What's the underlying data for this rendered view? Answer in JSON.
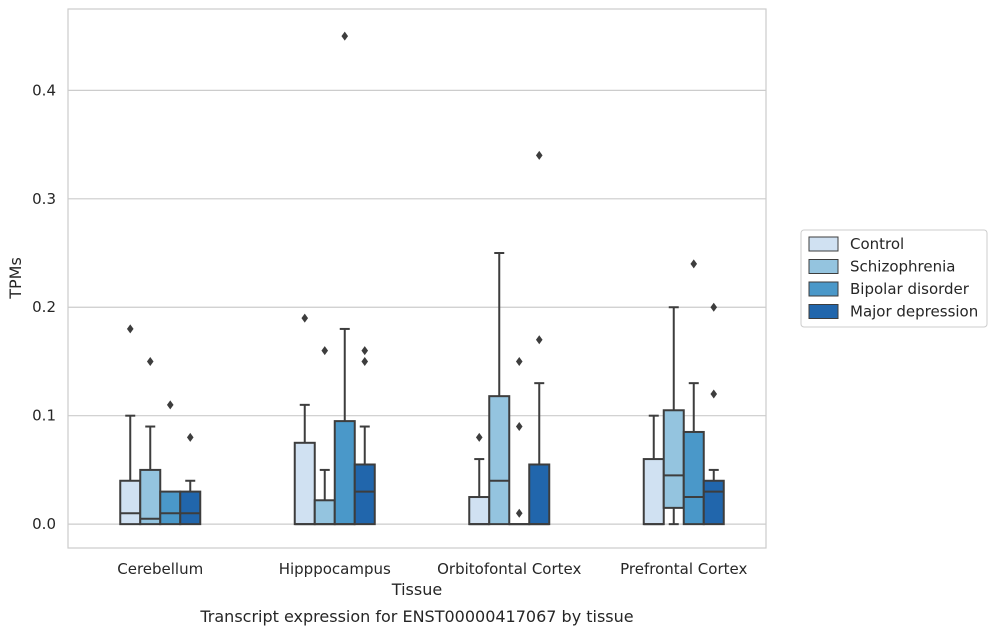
{
  "chart_data": {
    "type": "box",
    "title": "",
    "caption": "Transcript expression for ENST00000417067 by tissue",
    "xlabel": "Tissue",
    "ylabel": "TPMs",
    "ylim": [
      -0.022,
      0.475
    ],
    "yticks": [
      0.0,
      0.1,
      0.2,
      0.3,
      0.4
    ],
    "ytick_labels": [
      "0.0",
      "0.1",
      "0.2",
      "0.3",
      "0.4"
    ],
    "grid": "horizontal",
    "legend_position": "right",
    "categories": [
      "Cerebellum",
      "Hipppocampus",
      "Orbitofontal Cortex",
      "Prefrontal Cortex"
    ],
    "series": [
      {
        "name": "Control",
        "color": "#d0e1f2",
        "boxes": [
          {
            "min": 0.0,
            "q1": 0.0,
            "median": 0.01,
            "q3": 0.04,
            "max": 0.1,
            "outliers": [
              0.18
            ]
          },
          {
            "min": 0.0,
            "q1": 0.0,
            "median": 0.0,
            "q3": 0.075,
            "max": 0.11,
            "outliers": [
              0.19
            ]
          },
          {
            "min": 0.0,
            "q1": 0.0,
            "median": 0.0,
            "q3": 0.025,
            "max": 0.06,
            "outliers": [
              0.08
            ]
          },
          {
            "min": 0.0,
            "q1": 0.0,
            "median": 0.0,
            "q3": 0.06,
            "max": 0.1,
            "outliers": []
          }
        ]
      },
      {
        "name": "Schizophrenia",
        "color": "#94c4df",
        "boxes": [
          {
            "min": 0.0,
            "q1": 0.0,
            "median": 0.005,
            "q3": 0.05,
            "max": 0.09,
            "outliers": [
              0.15
            ]
          },
          {
            "min": 0.0,
            "q1": 0.0,
            "median": 0.0,
            "q3": 0.022,
            "max": 0.05,
            "outliers": [
              0.16
            ]
          },
          {
            "min": 0.0,
            "q1": 0.0,
            "median": 0.04,
            "q3": 0.118,
            "max": 0.25,
            "outliers": []
          },
          {
            "min": 0.0,
            "q1": 0.015,
            "median": 0.045,
            "q3": 0.105,
            "max": 0.2,
            "outliers": []
          }
        ]
      },
      {
        "name": "Bipolar disorder",
        "color": "#4a98c9",
        "boxes": [
          {
            "min": 0.0,
            "q1": 0.0,
            "median": 0.01,
            "q3": 0.03,
            "max": 0.03,
            "outliers": [
              0.11
            ]
          },
          {
            "min": 0.0,
            "q1": 0.0,
            "median": 0.0,
            "q3": 0.095,
            "max": 0.18,
            "outliers": [
              0.45
            ]
          },
          {
            "min": 0.0,
            "q1": 0.0,
            "median": 0.0,
            "q3": 0.0,
            "max": 0.0,
            "outliers": [
              0.01,
              0.09,
              0.15
            ]
          },
          {
            "min": 0.0,
            "q1": 0.0,
            "median": 0.025,
            "q3": 0.085,
            "max": 0.13,
            "outliers": [
              0.24
            ]
          }
        ]
      },
      {
        "name": "Major depression",
        "color": "#2166ac",
        "boxes": [
          {
            "min": 0.0,
            "q1": 0.0,
            "median": 0.01,
            "q3": 0.03,
            "max": 0.04,
            "outliers": [
              0.08
            ]
          },
          {
            "min": 0.0,
            "q1": 0.0,
            "median": 0.03,
            "q3": 0.055,
            "max": 0.09,
            "outliers": [
              0.15,
              0.16
            ]
          },
          {
            "min": 0.0,
            "q1": 0.0,
            "median": 0.0,
            "q3": 0.055,
            "max": 0.13,
            "outliers": [
              0.17,
              0.34
            ]
          },
          {
            "min": 0.0,
            "q1": 0.0,
            "median": 0.03,
            "q3": 0.04,
            "max": 0.05,
            "outliers": [
              0.12,
              0.2
            ]
          }
        ]
      }
    ]
  }
}
